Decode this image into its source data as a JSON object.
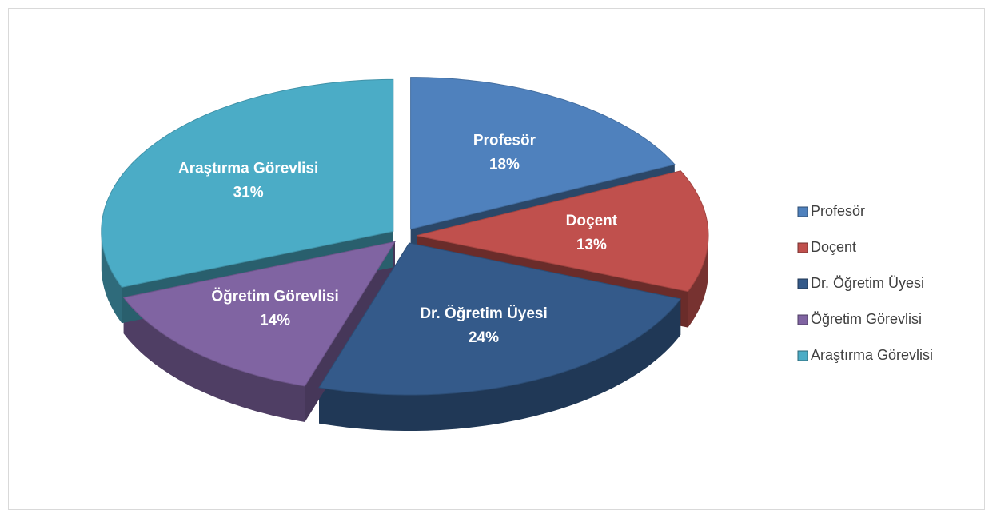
{
  "chart_data": {
    "type": "pie",
    "categories": [
      "Profesör",
      "Doçent",
      "Dr. Öğretim Üyesi",
      "Öğretim Görevlisi",
      "Araştırma Görevlisi"
    ],
    "values": [
      18,
      13,
      24,
      14,
      31
    ],
    "value_labels": [
      "18%",
      "13%",
      "24%",
      "14%",
      "31%"
    ],
    "colors": [
      "#4f81bd",
      "#c0504d",
      "#345a8a",
      "#8064a2",
      "#4bacc6"
    ],
    "legend": "right"
  }
}
